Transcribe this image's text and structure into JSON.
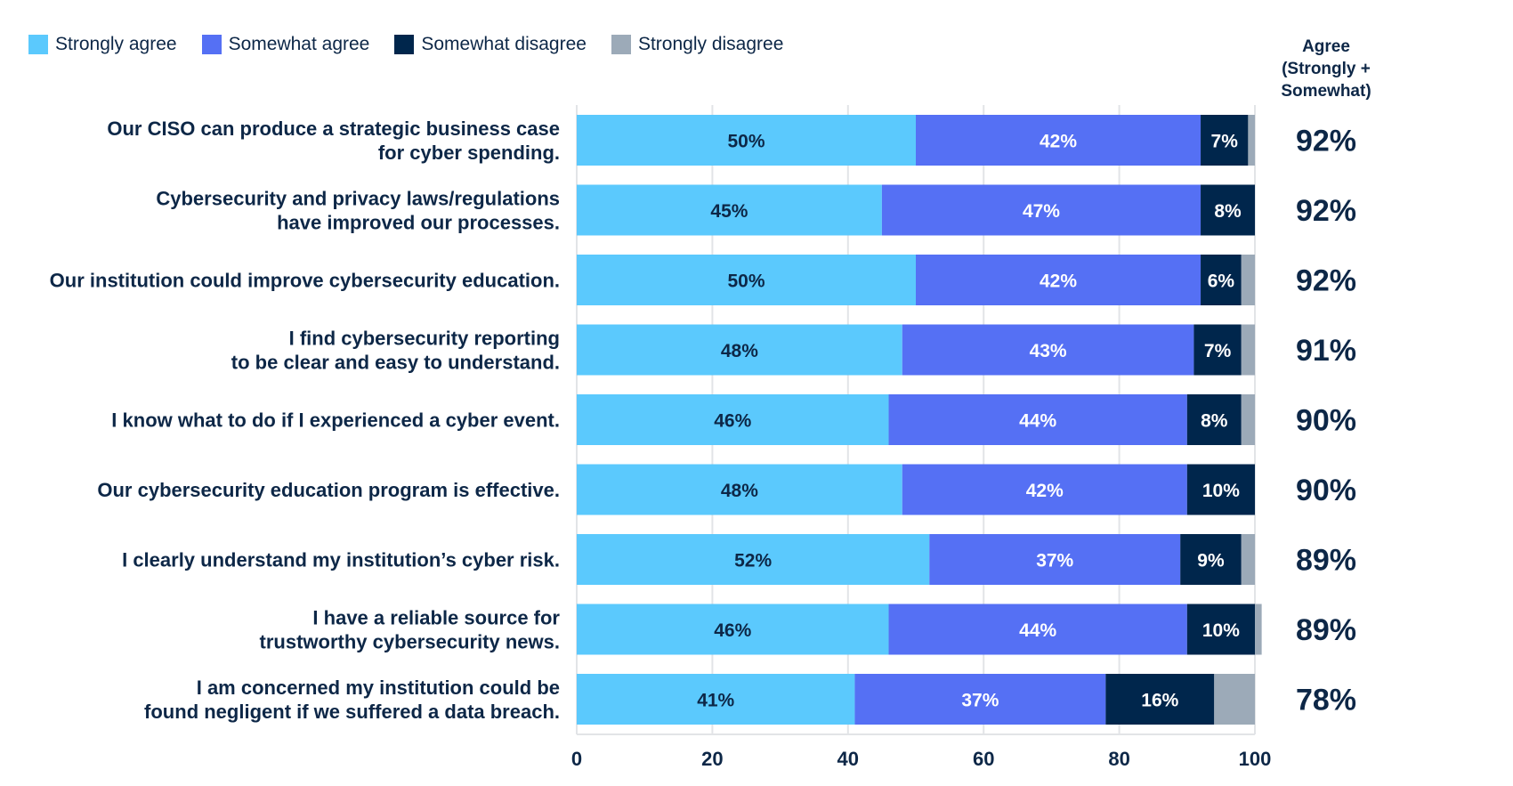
{
  "chart_data": {
    "type": "bar",
    "orientation": "horizontal",
    "stacked": true,
    "xlim": [
      0,
      100
    ],
    "x_ticks": [
      "0",
      "20",
      "40",
      "60",
      "80",
      "100"
    ],
    "grid": true,
    "legend_position": "top-left",
    "categories": [
      [
        "Our CISO can produce a strategic business case",
        "for cyber spending."
      ],
      [
        "Cybersecurity and privacy laws/regulations",
        "have improved our processes."
      ],
      [
        "Our institution could improve cybersecurity education."
      ],
      [
        "I find cybersecurity reporting",
        "to be clear and easy to understand."
      ],
      [
        "I know what to do if I experienced a cyber event."
      ],
      [
        "Our cybersecurity education program is effective."
      ],
      [
        "I clearly understand my institution’s cyber risk."
      ],
      [
        "I have a reliable source for",
        "trustworthy cybersecurity news."
      ],
      [
        "I am concerned my institution could be",
        "found negligent if we suffered a data breach."
      ]
    ],
    "series": [
      {
        "name": "Strongly agree",
        "color": "#5bc9fd",
        "label_color": "#0d2747",
        "values": [
          50,
          45,
          50,
          48,
          46,
          48,
          52,
          46,
          41
        ]
      },
      {
        "name": "Somewhat agree",
        "color": "#5570f4",
        "label_color": "#ffffff",
        "values": [
          42,
          47,
          42,
          43,
          44,
          42,
          37,
          44,
          37
        ]
      },
      {
        "name": "Somewhat disagree",
        "color": "#00264c",
        "label_color": "#ffffff",
        "values": [
          7,
          8,
          6,
          7,
          8,
          10,
          9,
          10,
          16
        ]
      },
      {
        "name": "Strongly disagree",
        "color": "#9caab8",
        "label_color": "#ffffff",
        "values": [
          1,
          0,
          2,
          2,
          2,
          0,
          2,
          1,
          6
        ],
        "labels_shown": false
      }
    ],
    "agree_total": {
      "header": [
        "Agree",
        "(Strongly +",
        "Somewhat)"
      ],
      "values": [
        "92%",
        "92%",
        "92%",
        "91%",
        "90%",
        "90%",
        "89%",
        "89%",
        "78%"
      ]
    }
  }
}
